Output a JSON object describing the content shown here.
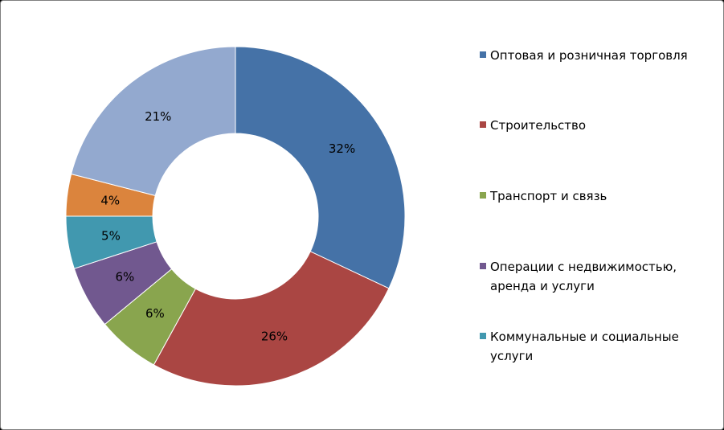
{
  "chart_data": {
    "type": "pie",
    "variant": "donut",
    "title": "",
    "legend_position": "right",
    "slices": [
      {
        "label": "Оптовая и розничная торговля",
        "value": 32,
        "data_label": "32%",
        "color": "#4572A7"
      },
      {
        "label": "Строительство",
        "value": 26,
        "data_label": "26%",
        "color": "#AA4643"
      },
      {
        "label": "Транспорт и связь",
        "value": 6,
        "data_label": "6%",
        "color": "#89A54E"
      },
      {
        "label": "Операции с недвижимостью, аренда и услуги",
        "value": 6,
        "data_label": "6%",
        "color": "#71588F"
      },
      {
        "label": "Коммунальные и социальные услуги",
        "value": 5,
        "data_label": "5%",
        "color": "#4198AF"
      },
      {
        "label": "",
        "value": 4,
        "data_label": "4%",
        "color": "#DB843D"
      },
      {
        "label": "",
        "value": 21,
        "data_label": "21%",
        "color": "#93A9CF"
      }
    ]
  }
}
